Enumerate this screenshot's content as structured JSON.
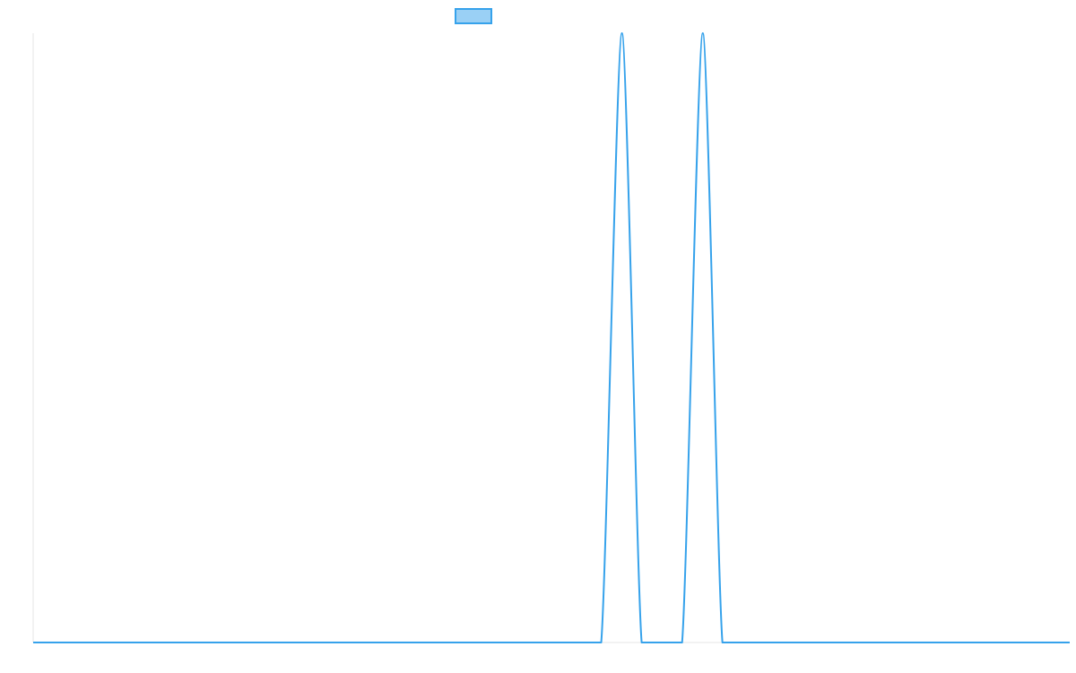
{
  "chart_data": {
    "type": "line",
    "title": "",
    "xlabel": "",
    "ylabel": "",
    "legend": {
      "placement": "top-center",
      "entries": [
        ""
      ]
    },
    "grid": false,
    "xlim": [
      0,
      1000
    ],
    "ylim": [
      0,
      1
    ],
    "series": [
      {
        "color": "#36a2eb",
        "fill": "#9ad0f5",
        "points": [
          [
            0,
            0
          ],
          [
            548,
            0
          ],
          [
            568,
            1
          ],
          [
            587,
            0
          ],
          [
            626,
            0
          ],
          [
            646,
            1
          ],
          [
            665,
            0
          ],
          [
            1000,
            0
          ]
        ]
      }
    ]
  }
}
